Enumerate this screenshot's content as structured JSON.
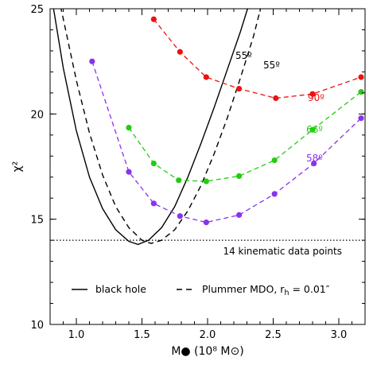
{
  "chart_data": {
    "type": "line",
    "xlabel": "M●  (10⁸ M⊙)",
    "ylabel": "χ²",
    "xlim": [
      0.8,
      3.2
    ],
    "ylim": [
      10,
      25
    ],
    "xticks": [
      1.0,
      1.5,
      2.0,
      2.5,
      3.0
    ],
    "xtick_labels": [
      "1.0",
      "1.5",
      "2.0",
      "2.5",
      "3.0"
    ],
    "yticks": [
      10,
      15,
      20,
      25
    ],
    "ytick_labels": [
      "10",
      "15",
      "20",
      "25"
    ],
    "grid": false,
    "reference_line": {
      "y": 14,
      "style": "dotted",
      "label": "14 kinematic data points"
    },
    "point_series": [
      {
        "label": "90º",
        "color": "#ee1111",
        "x": [
          1.59,
          1.79,
          1.99,
          2.24,
          2.52,
          2.8,
          3.17
        ],
        "y": [
          24.5,
          22.95,
          21.75,
          21.2,
          20.75,
          20.95,
          21.75
        ]
      },
      {
        "label": "66º",
        "color": "#22cc11",
        "x": [
          1.4,
          1.59,
          1.78,
          1.99,
          2.24,
          2.51,
          2.8,
          3.17
        ],
        "y": [
          19.35,
          17.65,
          16.85,
          16.8,
          17.05,
          17.8,
          19.25,
          21.05
        ]
      },
      {
        "label": "58º",
        "color": "#8833ee",
        "x": [
          1.12,
          1.4,
          1.59,
          1.79,
          1.99,
          2.24,
          2.51,
          2.81,
          3.17
        ],
        "y": [
          22.5,
          17.25,
          15.75,
          15.15,
          14.85,
          15.2,
          16.2,
          17.65,
          19.8
        ]
      }
    ],
    "curves": [
      {
        "label": "55º",
        "legend": "black hole",
        "style": "solid",
        "x": [
          0.8,
          0.9,
          1.0,
          1.1,
          1.2,
          1.3,
          1.4,
          1.47,
          1.55,
          1.65,
          1.75,
          1.85,
          1.95,
          2.05,
          2.15,
          2.25,
          2.33
        ],
        "y": [
          26.0,
          22.2,
          19.2,
          17.0,
          15.5,
          14.5,
          13.95,
          13.8,
          14.0,
          14.6,
          15.6,
          17.0,
          18.6,
          20.3,
          22.1,
          23.9,
          25.5
        ]
      },
      {
        "label": "55º",
        "legend": "Plummer MDO, r",
        "legend_sub": "h",
        "legend_tail": " = 0.01″",
        "style": "dashed",
        "x": [
          0.85,
          1.0,
          1.1,
          1.2,
          1.3,
          1.4,
          1.5,
          1.57,
          1.65,
          1.75,
          1.85,
          1.95,
          2.05,
          2.15,
          2.25,
          2.35,
          2.42
        ],
        "y": [
          26.0,
          21.6,
          19.1,
          17.1,
          15.6,
          14.6,
          14.0,
          13.85,
          14.0,
          14.5,
          15.4,
          16.6,
          18.1,
          19.8,
          21.7,
          23.7,
          25.4
        ]
      }
    ]
  }
}
